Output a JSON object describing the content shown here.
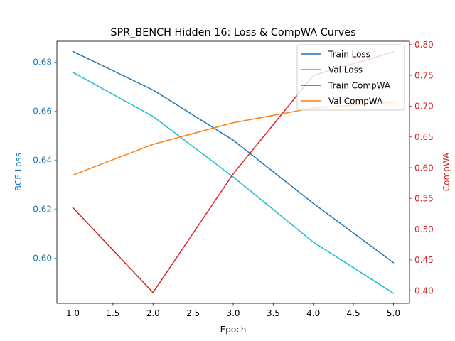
{
  "chart_data": {
    "type": "line",
    "title": "SPR_BENCH Hidden 16: Loss & CompWA Curves",
    "xlabel": "Epoch",
    "ylabel_left": "BCE Loss",
    "ylabel_right": "CompWA",
    "xlim": [
      0.8,
      5.2
    ],
    "ylim_left": [
      0.5815,
      0.6885
    ],
    "ylim_right": [
      0.3795,
      0.8055
    ],
    "x_ticks": [
      1.0,
      1.5,
      2.0,
      2.5,
      3.0,
      3.5,
      4.0,
      4.5,
      5.0
    ],
    "x_tick_labels": [
      "1.0",
      "1.5",
      "2.0",
      "2.5",
      "3.0",
      "3.5",
      "4.0",
      "4.5",
      "5.0"
    ],
    "y_left_ticks": [
      0.6,
      0.62,
      0.64,
      0.66,
      0.68
    ],
    "y_left_tick_labels": [
      "0.60",
      "0.62",
      "0.64",
      "0.66",
      "0.68"
    ],
    "y_right_ticks": [
      0.4,
      0.45,
      0.5,
      0.55,
      0.6,
      0.65,
      0.7,
      0.75,
      0.8
    ],
    "y_right_tick_labels": [
      "0.40",
      "0.45",
      "0.50",
      "0.55",
      "0.60",
      "0.65",
      "0.70",
      "0.75",
      "0.80"
    ],
    "x": [
      1,
      2,
      3,
      4,
      5
    ],
    "series": [
      {
        "name": "Train Loss",
        "axis": "left",
        "color": "#1f77b4",
        "values": [
          0.6843,
          0.6686,
          0.6481,
          0.6223,
          0.5981
        ]
      },
      {
        "name": "Val Loss",
        "axis": "left",
        "color": "#17becf",
        "values": [
          0.6758,
          0.6578,
          0.6331,
          0.6065,
          0.5856
        ]
      },
      {
        "name": "Train CompWA",
        "axis": "right",
        "color": "#d62728",
        "values": [
          0.535,
          0.397,
          0.59,
          0.75,
          0.788
        ]
      },
      {
        "name": "Val CompWA",
        "axis": "right",
        "color": "#ff7f0e",
        "values": [
          0.588,
          0.638,
          0.673,
          0.697,
          0.706
        ]
      }
    ],
    "legend_position": "top-right",
    "grid": false,
    "left_axis_color": "#1f77b4",
    "right_axis_color": "#d62728"
  }
}
